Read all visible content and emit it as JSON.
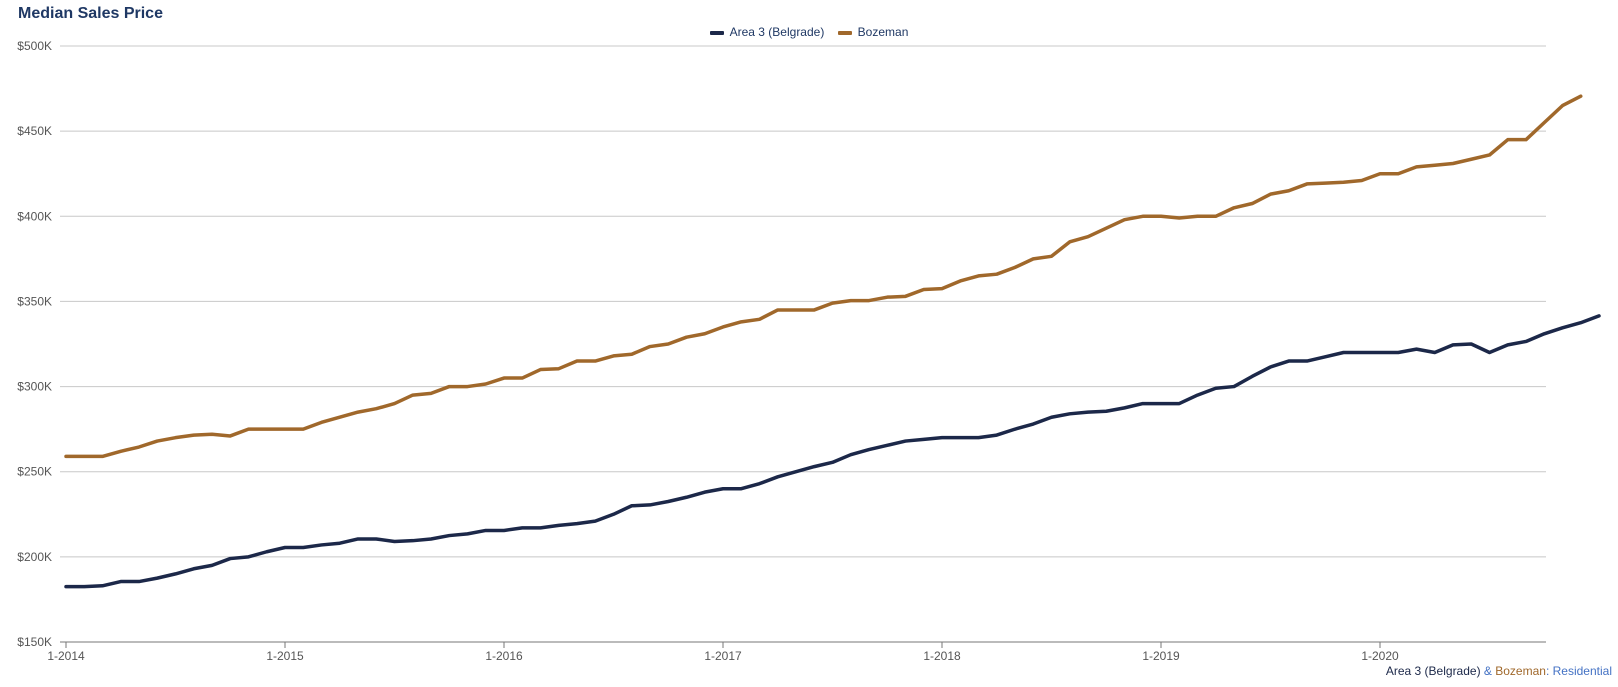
{
  "title": "Median Sales Price",
  "legend": [
    {
      "label": "Area 3 (Belgrade)",
      "color": "#1c2849"
    },
    {
      "label": "Bozeman",
      "color": "#a0682b"
    }
  ],
  "caption": {
    "part1": "Area 3 (Belgrade)",
    "part2": " & ",
    "part3": "Bozeman",
    "part4": ": ",
    "part5": "Residential",
    "color1": "#1c2849",
    "color2": "#a0682b",
    "color3": "#4472c4"
  },
  "chart_data": {
    "type": "line",
    "title": "Median Sales Price",
    "x_start": "2014-01",
    "x_interval": "monthly",
    "x_tick_labels": [
      "1-2014",
      "1-2015",
      "1-2016",
      "1-2017",
      "1-2018",
      "1-2019",
      "1-2020"
    ],
    "y_tick_labels": [
      "$150K",
      "$200K",
      "$250K",
      "$300K",
      "$350K",
      "$400K",
      "$450K",
      "$500K"
    ],
    "ylim": [
      150000,
      500000
    ],
    "grid": true,
    "legend_position": "top-center",
    "series": [
      {
        "name": "Area 3 (Belgrade)",
        "color": "#1c2849",
        "values": [
          182500,
          182500,
          183000,
          185500,
          185500,
          187500,
          190000,
          193000,
          195000,
          199000,
          200000,
          203000,
          205500,
          205500,
          207000,
          208000,
          210500,
          210500,
          209000,
          209500,
          210500,
          212500,
          213500,
          215500,
          215500,
          217000,
          217000,
          218500,
          219500,
          221000,
          225000,
          230000,
          230500,
          232500,
          235000,
          238000,
          240000,
          240000,
          243000,
          247000,
          250000,
          253000,
          255500,
          260000,
          263000,
          265500,
          268000,
          269000,
          270000,
          270000,
          270000,
          271500,
          275000,
          278000,
          282000,
          284000,
          285000,
          285500,
          287500,
          290000,
          290000,
          290000,
          295000,
          299000,
          300000,
          306000,
          311500,
          315000,
          315000,
          317500,
          320000,
          320000,
          320000,
          320000,
          322000,
          320000,
          324500,
          325000,
          320000,
          324500,
          326500,
          331000,
          334500,
          337500,
          341500
        ]
      },
      {
        "name": "Bozeman",
        "color": "#a0682b",
        "values": [
          259000,
          259000,
          259000,
          262000,
          264500,
          268000,
          270000,
          271500,
          272000,
          271000,
          275000,
          275000,
          275000,
          275000,
          279000,
          282000,
          285000,
          287000,
          290000,
          295000,
          296000,
          300000,
          300000,
          301500,
          305000,
          305000,
          310000,
          310500,
          315000,
          315000,
          318000,
          319000,
          323500,
          325000,
          329000,
          331000,
          335000,
          338000,
          339500,
          345000,
          345000,
          345000,
          349000,
          350500,
          350500,
          352500,
          353000,
          357000,
          357500,
          362000,
          365000,
          366000,
          370000,
          375000,
          376500,
          385000,
          388000,
          393000,
          398000,
          400000,
          400000,
          399000,
          400000,
          400000,
          405000,
          407500,
          413000,
          415000,
          419000,
          419500,
          420000,
          421000,
          425000,
          425000,
          429000,
          430000,
          431000,
          433500,
          436000,
          445000,
          445000,
          455000,
          465000,
          470500
        ]
      }
    ]
  }
}
